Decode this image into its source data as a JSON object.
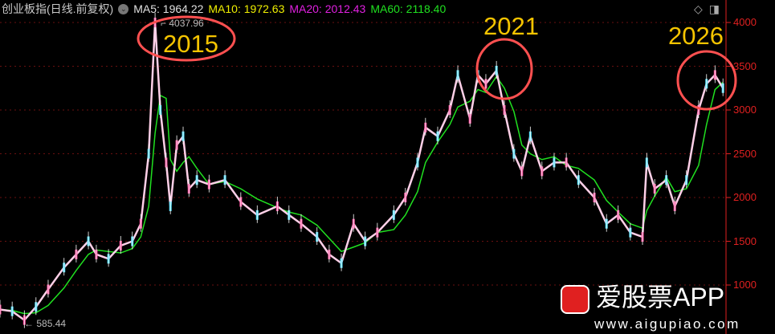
{
  "header": {
    "title": "创业板指(日线.前复权)",
    "ma5": "MA5: 1964.22",
    "ma10": "MA10: 1972.63",
    "ma20": "MA20: 2012.43",
    "ma60": "MA60: 2118.40"
  },
  "icons": [
    "diamond-icon",
    "panel-toggle-icon"
  ],
  "watermark": {
    "brand": "爱股票APP",
    "url": "www.aigupiao.com"
  },
  "colors": {
    "price": "#ff80c0",
    "ma": "#20e020",
    "axis": "#e02020",
    "annotation": "#f5c400",
    "circle": "#ff5050"
  },
  "chart_data": {
    "type": "line",
    "title": "",
    "yticks": [
      1000,
      1500,
      2000,
      2500,
      3000,
      3500,
      4000
    ],
    "ylim": [
      600,
      4150
    ],
    "xlim": [
      2012.5,
      2026.2
    ],
    "grid": true,
    "max_label": "4037.96",
    "min_label": "585.44",
    "annotations": [
      "2015",
      "2021",
      "2026"
    ],
    "x": [
      2012.5,
      2012.73,
      2012.96,
      2013.18,
      2013.41,
      2013.71,
      2013.94,
      2014.17,
      2014.32,
      2014.55,
      2014.78,
      2015.0,
      2015.16,
      2015.31,
      2015.43,
      2015.53,
      2015.64,
      2015.72,
      2015.84,
      2015.96,
      2016.07,
      2016.22,
      2016.45,
      2016.75,
      2017.05,
      2017.36,
      2017.74,
      2017.96,
      2018.19,
      2018.49,
      2018.72,
      2018.95,
      2019.18,
      2019.4,
      2019.63,
      2019.94,
      2020.16,
      2020.39,
      2020.54,
      2020.77,
      2021.0,
      2021.15,
      2021.38,
      2021.53,
      2021.68,
      2021.88,
      2022.03,
      2022.21,
      2022.36,
      2022.52,
      2022.74,
      2022.97,
      2023.2,
      2023.43,
      2023.73,
      2023.96,
      2024.18,
      2024.41,
      2024.64,
      2024.72,
      2024.87,
      2025.09,
      2025.25,
      2025.47,
      2025.7,
      2025.85,
      2026.01,
      2026.16
    ],
    "values": [
      720,
      700,
      600,
      750,
      950,
      1200,
      1350,
      1500,
      1350,
      1300,
      1450,
      1500,
      1700,
      2500,
      4000,
      3000,
      2400,
      1900,
      2600,
      2700,
      2100,
      2200,
      2150,
      2200,
      1950,
      1800,
      1900,
      1800,
      1700,
      1550,
      1350,
      1250,
      1700,
      1500,
      1600,
      1800,
      2000,
      2400,
      2800,
      2700,
      3000,
      3400,
      2900,
      3400,
      3300,
      3450,
      3000,
      2500,
      2300,
      2700,
      2300,
      2400,
      2400,
      2200,
      2000,
      1700,
      1800,
      1600,
      1550,
      2400,
      2100,
      2200,
      1900,
      2200,
      3000,
      3300,
      3400,
      3250
    ]
  }
}
